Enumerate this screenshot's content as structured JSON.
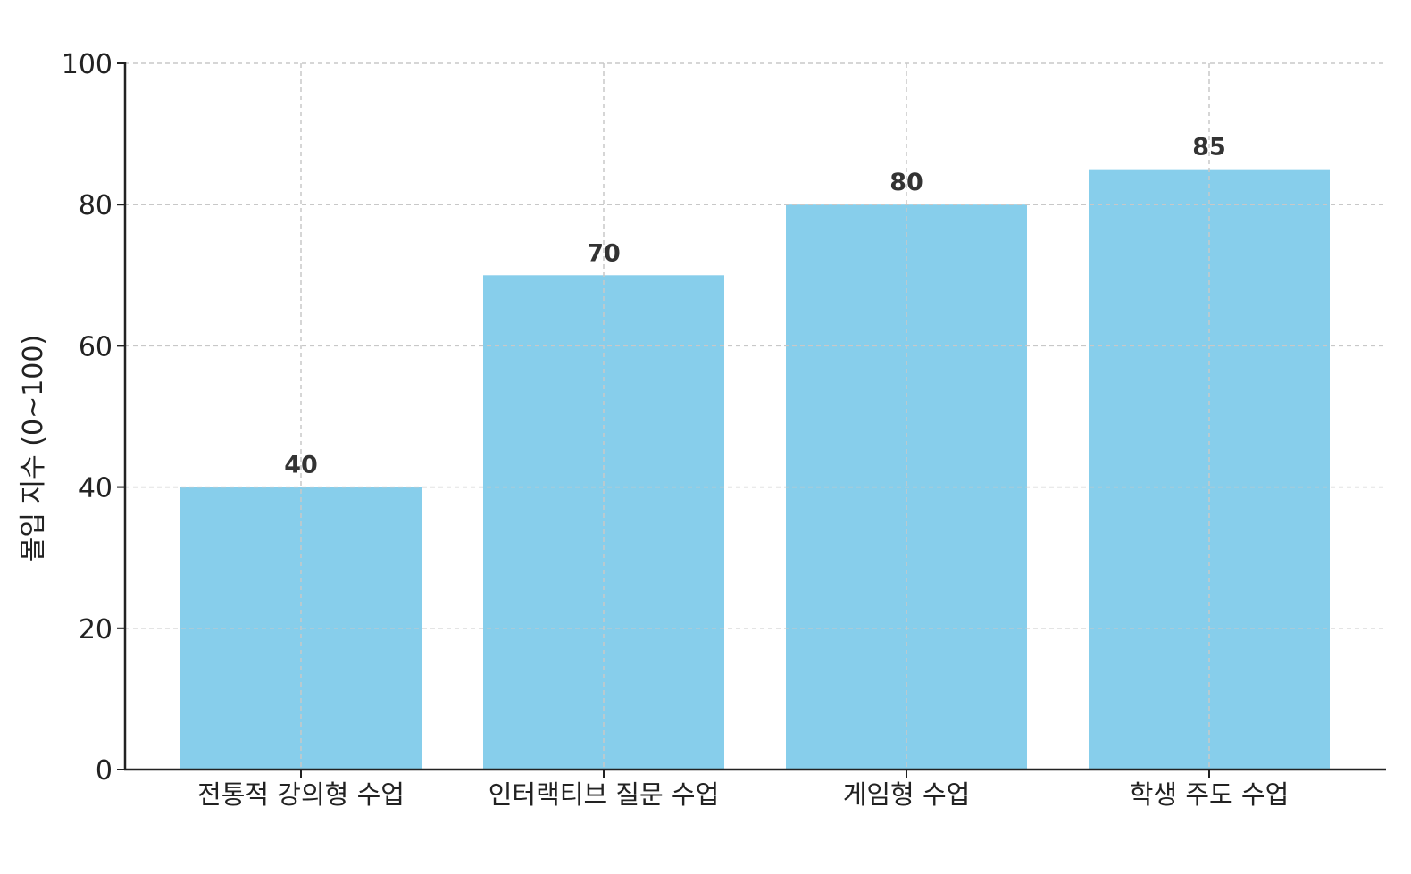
{
  "chart_data": {
    "type": "bar",
    "categories": [
      "전통적 강의형 수업",
      "인터랙티브 질문 수업",
      "게임형 수업",
      "학생 주도 수업"
    ],
    "values": [
      40,
      70,
      80,
      85
    ],
    "title": "",
    "xlabel": "",
    "ylabel": "몰입 지수 (0~100)",
    "ylim": [
      0,
      100
    ],
    "yticks": [
      0,
      20,
      40,
      60,
      80,
      100
    ],
    "grid": true,
    "bar_color": "#87CEEB",
    "grid_color": "#c8c8c8",
    "axis_color": "#222222",
    "value_labels": [
      "40",
      "70",
      "80",
      "85"
    ]
  }
}
